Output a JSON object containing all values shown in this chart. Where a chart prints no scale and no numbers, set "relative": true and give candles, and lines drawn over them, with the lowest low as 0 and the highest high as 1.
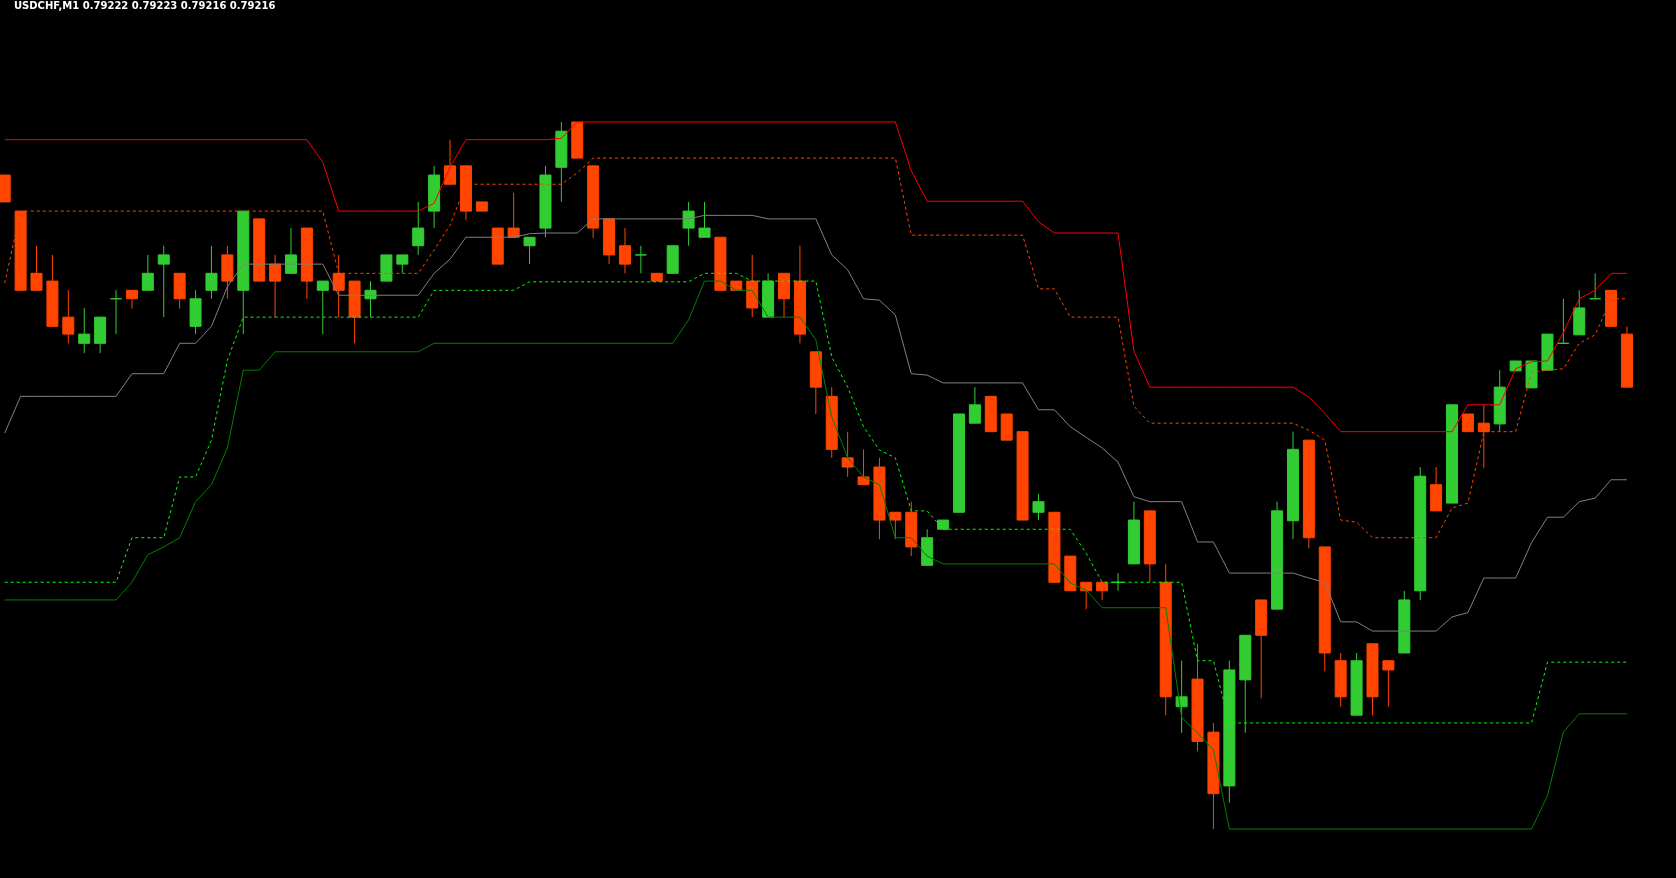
{
  "chart_data": {
    "type": "candlestick",
    "title": "USDCHF,M1  0.79222 0.79223 0.79216 0.79216",
    "relative": true,
    "categories": [
      null,
      null,
      null,
      null,
      null,
      null,
      null,
      null,
      null,
      null,
      null,
      null,
      null,
      null,
      null,
      null,
      null,
      null,
      null,
      null,
      null,
      null,
      null,
      null,
      null,
      null,
      null,
      null,
      null,
      null,
      null,
      null,
      null,
      null,
      null,
      null,
      null,
      null,
      null,
      null,
      null,
      null,
      null,
      null,
      null,
      null,
      null,
      null,
      null,
      null,
      null,
      null,
      null,
      null,
      null,
      null,
      null,
      null,
      null,
      null,
      null,
      null,
      null,
      null,
      null,
      null,
      null,
      null,
      null,
      null,
      null,
      null,
      null,
      null,
      null,
      null,
      null,
      null,
      null,
      null,
      null,
      null,
      null,
      null,
      null,
      null,
      null,
      null,
      null,
      null,
      null,
      null,
      null,
      null,
      null,
      null,
      null,
      null,
      null,
      null,
      null,
      null,
      null
    ],
    "ohlc": [
      [
        0.925,
        0.925,
        0.887,
        0.887
      ],
      [
        0.874,
        0.874,
        0.762,
        0.762
      ],
      [
        0.786,
        0.825,
        0.762,
        0.762
      ],
      [
        0.775,
        0.812,
        0.711,
        0.711
      ],
      [
        0.724,
        0.762,
        0.687,
        0.7
      ],
      [
        0.687,
        0.737,
        0.673,
        0.7
      ],
      [
        0.687,
        0.724,
        0.673,
        0.724
      ],
      [
        0.75,
        0.762,
        0.7,
        0.75
      ],
      [
        0.762,
        0.762,
        0.736,
        0.75
      ],
      [
        0.762,
        0.812,
        0.762,
        0.786
      ],
      [
        0.799,
        0.825,
        0.724,
        0.812
      ],
      [
        0.786,
        0.786,
        0.736,
        0.75
      ],
      [
        0.711,
        0.762,
        0.7,
        0.75
      ],
      [
        0.762,
        0.825,
        0.75,
        0.786
      ],
      [
        0.812,
        0.825,
        0.75,
        0.775
      ],
      [
        0.762,
        0.874,
        0.7,
        0.874
      ],
      [
        0.863,
        0.863,
        0.775,
        0.775
      ],
      [
        0.799,
        0.812,
        0.724,
        0.775
      ],
      [
        0.786,
        0.85,
        0.786,
        0.812
      ],
      [
        0.85,
        0.85,
        0.75,
        0.775
      ],
      [
        0.762,
        0.775,
        0.7,
        0.775
      ],
      [
        0.786,
        0.812,
        0.724,
        0.762
      ],
      [
        0.775,
        0.775,
        0.687,
        0.724
      ],
      [
        0.75,
        0.775,
        0.724,
        0.762
      ],
      [
        0.775,
        0.812,
        0.775,
        0.812
      ],
      [
        0.799,
        0.812,
        0.786,
        0.812
      ],
      [
        0.825,
        0.887,
        0.812,
        0.85
      ],
      [
        0.874,
        0.938,
        0.85,
        0.925
      ],
      [
        0.938,
        0.975,
        0.912,
        0.912
      ],
      [
        0.938,
        0.938,
        0.861,
        0.874
      ],
      [
        0.887,
        0.887,
        0.874,
        0.874
      ],
      [
        0.85,
        0.85,
        0.799,
        0.799
      ],
      [
        0.85,
        0.9,
        0.837,
        0.837
      ],
      [
        0.825,
        0.837,
        0.799,
        0.837
      ],
      [
        0.85,
        0.938,
        0.837,
        0.925
      ],
      [
        0.936,
        1.0,
        0.887,
        0.987
      ],
      [
        1.0,
        1.0,
        0.949,
        0.949
      ],
      [
        0.938,
        0.938,
        0.836,
        0.85
      ],
      [
        0.863,
        0.863,
        0.799,
        0.812
      ],
      [
        0.825,
        0.85,
        0.786,
        0.799
      ],
      [
        0.812,
        0.825,
        0.786,
        0.812
      ],
      [
        0.786,
        0.786,
        0.775,
        0.775
      ],
      [
        0.786,
        0.825,
        0.786,
        0.825
      ],
      [
        0.85,
        0.887,
        0.825,
        0.874
      ],
      [
        0.837,
        0.887,
        0.837,
        0.85
      ],
      [
        0.837,
        0.837,
        0.762,
        0.762
      ],
      [
        0.775,
        0.775,
        0.762,
        0.762
      ],
      [
        0.775,
        0.812,
        0.724,
        0.737
      ],
      [
        0.724,
        0.786,
        0.724,
        0.775
      ],
      [
        0.786,
        0.786,
        0.724,
        0.75
      ],
      [
        0.775,
        0.825,
        0.687,
        0.7
      ],
      [
        0.675,
        0.675,
        0.587,
        0.625
      ],
      [
        0.612,
        0.625,
        0.525,
        0.537
      ],
      [
        0.525,
        0.562,
        0.498,
        0.512
      ],
      [
        0.498,
        0.537,
        0.487,
        0.487
      ],
      [
        0.512,
        0.525,
        0.41,
        0.437
      ],
      [
        0.448,
        0.448,
        0.41,
        0.437
      ],
      [
        0.448,
        0.463,
        0.386,
        0.399
      ],
      [
        0.373,
        0.424,
        0.373,
        0.412
      ],
      [
        0.424,
        0.437,
        0.424,
        0.437
      ],
      [
        0.448,
        0.587,
        0.448,
        0.587
      ],
      [
        0.574,
        0.625,
        0.574,
        0.6
      ],
      [
        0.612,
        0.612,
        0.562,
        0.562
      ],
      [
        0.587,
        0.587,
        0.55,
        0.55
      ],
      [
        0.562,
        0.562,
        0.437,
        0.437
      ],
      [
        0.448,
        0.474,
        0.437,
        0.463
      ],
      [
        0.448,
        0.448,
        0.349,
        0.349
      ],
      [
        0.386,
        0.386,
        0.337,
        0.337
      ],
      [
        0.349,
        0.349,
        0.311,
        0.337
      ],
      [
        0.349,
        0.349,
        0.324,
        0.337
      ],
      [
        0.349,
        0.362,
        0.337,
        0.349
      ],
      [
        0.375,
        0.463,
        0.375,
        0.437
      ],
      [
        0.45,
        0.45,
        0.349,
        0.375
      ],
      [
        0.349,
        0.375,
        0.161,
        0.187
      ],
      [
        0.173,
        0.238,
        0.136,
        0.187
      ],
      [
        0.212,
        0.262,
        0.11,
        0.124
      ],
      [
        0.137,
        0.15,
        0.0,
        0.05
      ],
      [
        0.061,
        0.238,
        0.037,
        0.225
      ],
      [
        0.211,
        0.274,
        0.136,
        0.274
      ],
      [
        0.324,
        0.324,
        0.185,
        0.274
      ],
      [
        0.311,
        0.463,
        0.311,
        0.45
      ],
      [
        0.436,
        0.562,
        0.41,
        0.537
      ],
      [
        0.55,
        0.55,
        0.397,
        0.412
      ],
      [
        0.399,
        0.399,
        0.223,
        0.249
      ],
      [
        0.238,
        0.249,
        0.173,
        0.187
      ],
      [
        0.161,
        0.249,
        0.161,
        0.238
      ],
      [
        0.262,
        0.262,
        0.161,
        0.187
      ],
      [
        0.238,
        0.238,
        0.173,
        0.225
      ],
      [
        0.249,
        0.337,
        0.249,
        0.324
      ],
      [
        0.337,
        0.512,
        0.324,
        0.499
      ],
      [
        0.487,
        0.512,
        0.45,
        0.45
      ],
      [
        0.461,
        0.6,
        0.461,
        0.6
      ],
      [
        0.587,
        0.587,
        0.562,
        0.562
      ],
      [
        0.574,
        0.6,
        0.511,
        0.562
      ],
      [
        0.573,
        0.649,
        0.562,
        0.625
      ],
      [
        0.648,
        0.662,
        0.648,
        0.662
      ],
      [
        0.624,
        0.662,
        0.624,
        0.662
      ],
      [
        0.649,
        0.7,
        0.649,
        0.7
      ],
      [
        0.687,
        0.75,
        0.687,
        0.687
      ],
      [
        0.699,
        0.762,
        0.699,
        0.737
      ],
      [
        0.75,
        0.786,
        0.75,
        0.75
      ],
      [
        0.762,
        0.762,
        0.711,
        0.711
      ],
      [
        0.7,
        0.711,
        0.625,
        0.625
      ]
    ],
    "colors": [
      "#ff4500",
      "#ff4500",
      "#ff4500",
      "#ff4500",
      "#ff4500",
      "#32cd32",
      "#32cd32",
      "#32cd32",
      "#ff4500",
      "#32cd32",
      "#32cd32",
      "#ff4500",
      "#32cd32",
      "#32cd32",
      "#ff4500",
      "#32cd32",
      "#ff4500",
      "#ff4500",
      "#32cd32",
      "#ff4500",
      "#32cd32",
      "#ff4500",
      "#ff4500",
      "#32cd32",
      "#32cd32",
      "#32cd32",
      "#32cd32",
      "#32cd32",
      "#ff4500",
      "#ff4500",
      "#ff4500",
      "#ff4500",
      "#ff4500",
      "#32cd32",
      "#32cd32",
      "#32cd32",
      "#ff4500",
      "#ff4500",
      "#ff4500",
      "#ff4500",
      "#32cd32",
      "#ff4500",
      "#32cd32",
      "#32cd32",
      "#32cd32",
      "#ff4500",
      "#ff4500",
      "#ff4500",
      "#32cd32",
      "#ff4500",
      "#ff4500",
      "#ff4500",
      "#ff4500",
      "#ff4500",
      "#ff4500",
      "#ff4500",
      "#ff4500",
      "#ff4500",
      "#32cd32",
      "#32cd32",
      "#32cd32",
      "#32cd32",
      "#ff4500",
      "#ff4500",
      "#ff4500",
      "#32cd32",
      "#ff4500",
      "#ff4500",
      "#ff4500",
      "#ff4500",
      "#32cd32",
      "#32cd32",
      "#ff4500",
      "#ff4500",
      "#32cd32",
      "#ff4500",
      "#ff4500",
      "#32cd32",
      "#32cd32",
      "#ff4500",
      "#32cd32",
      "#32cd32",
      "#ff4500",
      "#ff4500",
      "#ff4500",
      "#32cd32",
      "#ff4500",
      "#ff4500",
      "#32cd32",
      "#32cd32",
      "#ff4500",
      "#32cd32",
      "#ff4500",
      "#ff4500",
      "#32cd32",
      "#32cd32",
      "#32cd32",
      "#32cd32",
      "#32cd32",
      "#32cd32",
      "#32cd32",
      "#ff4500",
      "#ff4500"
    ],
    "series": [
      {
        "type": "line",
        "color": "#ff0000",
        "line_style": "solid",
        "values": [
          0.975,
          0.975,
          0.975,
          0.975,
          0.975,
          0.975,
          0.975,
          0.975,
          0.975,
          0.975,
          0.975,
          0.975,
          0.975,
          0.975,
          0.975,
          0.975,
          0.975,
          0.975,
          0.975,
          0.975,
          0.943,
          0.874,
          0.874,
          0.874,
          0.874,
          0.874,
          0.874,
          0.885,
          0.936,
          0.975,
          0.975,
          0.975,
          0.975,
          0.975,
          0.975,
          0.977,
          1.0,
          1.0,
          1.0,
          1.0,
          1.0,
          1.0,
          1.0,
          1.0,
          1.0,
          1.0,
          1.0,
          1.0,
          1.0,
          1.0,
          1.0,
          1.0,
          1.0,
          1.0,
          1.0,
          1.0,
          1.0,
          0.931,
          0.888,
          0.888,
          0.888,
          0.888,
          0.888,
          0.888,
          0.888,
          0.859,
          0.843,
          0.843,
          0.843,
          0.843,
          0.843,
          0.676,
          0.625,
          0.625,
          0.625,
          0.625,
          0.625,
          0.625,
          0.625,
          0.625,
          0.625,
          0.625,
          0.611,
          0.588,
          0.562,
          0.562,
          0.562,
          0.562,
          0.562,
          0.562,
          0.562,
          0.562,
          0.6,
          0.6,
          0.6,
          0.651,
          0.661,
          0.662,
          0.702,
          0.75,
          0.762,
          0.786,
          0.786
        ]
      },
      {
        "type": "line",
        "color": "#ff4500",
        "line_style": "dashed",
        "values": [
          0.772,
          0.874,
          0.874,
          0.874,
          0.874,
          0.874,
          0.874,
          0.874,
          0.874,
          0.874,
          0.874,
          0.874,
          0.874,
          0.874,
          0.874,
          0.874,
          0.874,
          0.874,
          0.874,
          0.874,
          0.874,
          0.786,
          0.786,
          0.786,
          0.786,
          0.786,
          0.786,
          0.819,
          0.854,
          0.912,
          0.912,
          0.912,
          0.912,
          0.912,
          0.912,
          0.912,
          0.928,
          0.949,
          0.949,
          0.949,
          0.949,
          0.949,
          0.949,
          0.949,
          0.949,
          0.949,
          0.949,
          0.949,
          0.949,
          0.949,
          0.949,
          0.949,
          0.949,
          0.949,
          0.949,
          0.949,
          0.949,
          0.84,
          0.84,
          0.84,
          0.84,
          0.84,
          0.84,
          0.84,
          0.84,
          0.764,
          0.764,
          0.724,
          0.724,
          0.724,
          0.724,
          0.598,
          0.574,
          0.574,
          0.574,
          0.574,
          0.574,
          0.574,
          0.574,
          0.574,
          0.574,
          0.574,
          0.564,
          0.55,
          0.437,
          0.434,
          0.412,
          0.412,
          0.412,
          0.412,
          0.412,
          0.454,
          0.461,
          0.562,
          0.562,
          0.562,
          0.646,
          0.649,
          0.651,
          0.687,
          0.699,
          0.75,
          0.75
        ]
      },
      {
        "type": "line",
        "color": "#808080",
        "line_style": "solid",
        "values": [
          0.56,
          0.612,
          0.612,
          0.612,
          0.612,
          0.612,
          0.612,
          0.612,
          0.644,
          0.644,
          0.644,
          0.687,
          0.687,
          0.711,
          0.767,
          0.799,
          0.799,
          0.799,
          0.799,
          0.799,
          0.799,
          0.755,
          0.755,
          0.755,
          0.755,
          0.755,
          0.755,
          0.786,
          0.806,
          0.837,
          0.837,
          0.837,
          0.837,
          0.842,
          0.843,
          0.843,
          0.843,
          0.863,
          0.863,
          0.863,
          0.863,
          0.863,
          0.863,
          0.863,
          0.868,
          0.868,
          0.868,
          0.868,
          0.863,
          0.863,
          0.863,
          0.863,
          0.812,
          0.791,
          0.75,
          0.748,
          0.727,
          0.644,
          0.642,
          0.631,
          0.631,
          0.631,
          0.631,
          0.631,
          0.631,
          0.593,
          0.593,
          0.569,
          0.554,
          0.539,
          0.519,
          0.47,
          0.463,
          0.463,
          0.463,
          0.406,
          0.406,
          0.362,
          0.362,
          0.362,
          0.362,
          0.362,
          0.355,
          0.349,
          0.293,
          0.293,
          0.28,
          0.28,
          0.28,
          0.28,
          0.28,
          0.3,
          0.306,
          0.355,
          0.355,
          0.355,
          0.405,
          0.441,
          0.441,
          0.463,
          0.468,
          0.494,
          0.494
        ]
      },
      {
        "type": "line",
        "color": "#00ff00",
        "line_style": "dashed",
        "values": [
          0.349,
          0.349,
          0.349,
          0.349,
          0.349,
          0.349,
          0.349,
          0.349,
          0.412,
          0.412,
          0.412,
          0.498,
          0.498,
          0.55,
          0.663,
          0.724,
          0.724,
          0.724,
          0.724,
          0.724,
          0.724,
          0.724,
          0.724,
          0.724,
          0.724,
          0.724,
          0.724,
          0.762,
          0.762,
          0.762,
          0.762,
          0.762,
          0.762,
          0.774,
          0.774,
          0.774,
          0.774,
          0.774,
          0.774,
          0.774,
          0.774,
          0.774,
          0.774,
          0.774,
          0.786,
          0.786,
          0.786,
          0.775,
          0.775,
          0.775,
          0.775,
          0.775,
          0.668,
          0.625,
          0.569,
          0.536,
          0.525,
          0.45,
          0.45,
          0.424,
          0.424,
          0.424,
          0.424,
          0.424,
          0.424,
          0.424,
          0.424,
          0.424,
          0.39,
          0.349,
          0.349,
          0.349,
          0.349,
          0.349,
          0.349,
          0.238,
          0.238,
          0.15,
          0.15,
          0.15,
          0.15,
          0.15,
          0.15,
          0.15,
          0.15,
          0.15,
          0.15,
          0.15,
          0.15,
          0.15,
          0.15,
          0.15,
          0.15,
          0.15,
          0.15,
          0.15,
          0.15,
          0.236,
          0.236,
          0.236,
          0.236,
          0.236,
          0.236
        ]
      },
      {
        "type": "line",
        "color": "#008000",
        "line_style": "solid",
        "values": [
          0.324,
          0.324,
          0.324,
          0.324,
          0.324,
          0.324,
          0.324,
          0.324,
          0.349,
          0.388,
          0.399,
          0.412,
          0.463,
          0.487,
          0.539,
          0.649,
          0.649,
          0.675,
          0.675,
          0.675,
          0.675,
          0.675,
          0.675,
          0.675,
          0.675,
          0.675,
          0.675,
          0.687,
          0.687,
          0.687,
          0.687,
          0.687,
          0.687,
          0.687,
          0.687,
          0.687,
          0.687,
          0.687,
          0.687,
          0.687,
          0.687,
          0.687,
          0.687,
          0.72,
          0.775,
          0.775,
          0.762,
          0.762,
          0.724,
          0.724,
          0.724,
          0.692,
          0.583,
          0.525,
          0.498,
          0.487,
          0.412,
          0.412,
          0.386,
          0.375,
          0.375,
          0.375,
          0.375,
          0.375,
          0.375,
          0.375,
          0.375,
          0.348,
          0.338,
          0.313,
          0.313,
          0.313,
          0.313,
          0.313,
          0.158,
          0.136,
          0.112,
          0,
          0,
          0,
          0,
          0,
          0,
          0,
          0,
          0,
          0,
          0,
          0,
          0,
          0,
          0,
          0,
          0,
          0,
          0,
          0,
          0.047,
          0.137,
          0.163,
          0.163,
          0.163,
          0.163
        ]
      }
    ]
  }
}
